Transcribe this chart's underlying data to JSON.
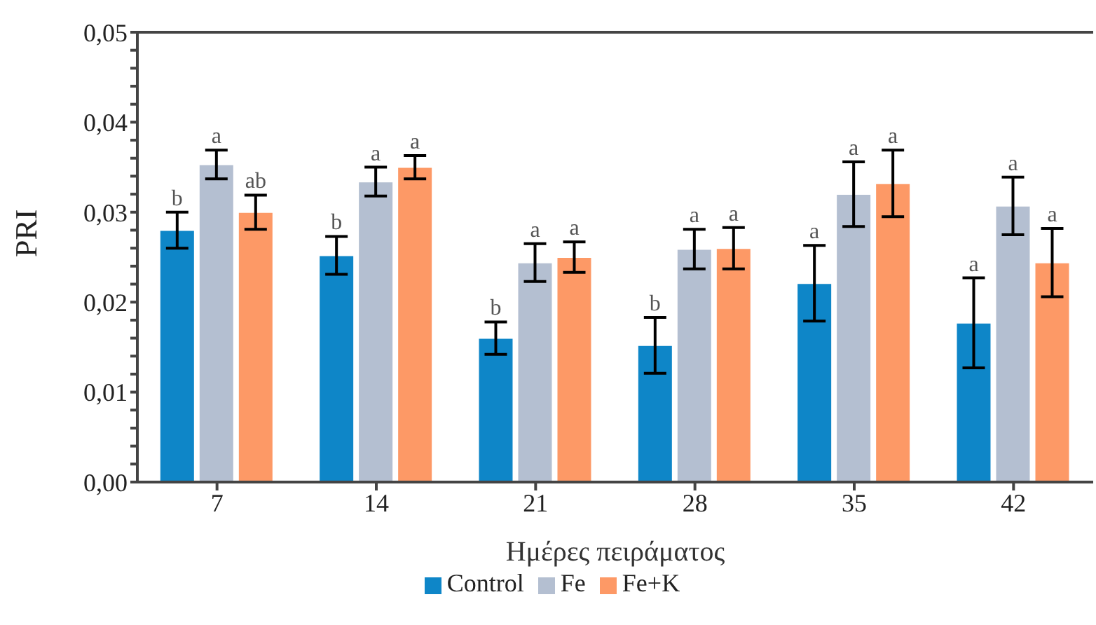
{
  "chart_data": {
    "type": "bar",
    "xlabel": "Ημέρες πειράματος",
    "ylabel": "PRI",
    "categories": [
      "7",
      "14",
      "21",
      "28",
      "35",
      "42"
    ],
    "series": [
      {
        "name": "Control",
        "color": "#0e86c8",
        "values": [
          0.028,
          0.0252,
          0.016,
          0.0152,
          0.0221,
          0.0177
        ],
        "errors": [
          0.002,
          0.0021,
          0.0018,
          0.0031,
          0.0042,
          0.005
        ]
      },
      {
        "name": "Fe",
        "color": "#b4bfd1",
        "values": [
          0.0353,
          0.0334,
          0.0244,
          0.0259,
          0.032,
          0.0307
        ],
        "errors": [
          0.0016,
          0.0016,
          0.0021,
          0.0022,
          0.0036,
          0.0032
        ]
      },
      {
        "name": "Fe+K",
        "color": "#fd9966",
        "values": [
          0.03,
          0.035,
          0.025,
          0.026,
          0.0332,
          0.0244
        ],
        "errors": [
          0.0019,
          0.0013,
          0.0017,
          0.0023,
          0.0037,
          0.0038
        ]
      }
    ],
    "ylim": [
      0,
      0.05
    ],
    "yticks": [
      {
        "value": 0,
        "label": "0,00"
      },
      {
        "value": 0.002,
        "label": null
      },
      {
        "value": 0.004,
        "label": null
      },
      {
        "value": 0.006,
        "label": null
      },
      {
        "value": 0.008,
        "label": null
      },
      {
        "value": 0.01,
        "label": "0,01"
      },
      {
        "value": 0.012,
        "label": null
      },
      {
        "value": 0.014,
        "label": null
      },
      {
        "value": 0.016,
        "label": null
      },
      {
        "value": 0.018,
        "label": null
      },
      {
        "value": 0.02,
        "label": "0,02"
      },
      {
        "value": 0.022,
        "label": null
      },
      {
        "value": 0.024,
        "label": null
      },
      {
        "value": 0.026,
        "label": null
      },
      {
        "value": 0.028,
        "label": null
      },
      {
        "value": 0.03,
        "label": "0,03"
      },
      {
        "value": 0.032,
        "label": null
      },
      {
        "value": 0.034,
        "label": null
      },
      {
        "value": 0.036,
        "label": null
      },
      {
        "value": 0.038,
        "label": null
      },
      {
        "value": 0.04,
        "label": "0,04"
      },
      {
        "value": 0.042,
        "label": null
      },
      {
        "value": 0.044,
        "label": null
      },
      {
        "value": 0.046,
        "label": null
      },
      {
        "value": 0.048,
        "label": null
      },
      {
        "value": 0.05,
        "label": "0,05"
      }
    ],
    "grid": false,
    "legend": "bottom",
    "annotations": [
      "b",
      "a",
      "ab",
      "b",
      "a",
      "a",
      "b",
      "a",
      "a",
      "b",
      "a",
      "a",
      "a",
      "a",
      "a",
      "a",
      "a",
      "a"
    ]
  }
}
